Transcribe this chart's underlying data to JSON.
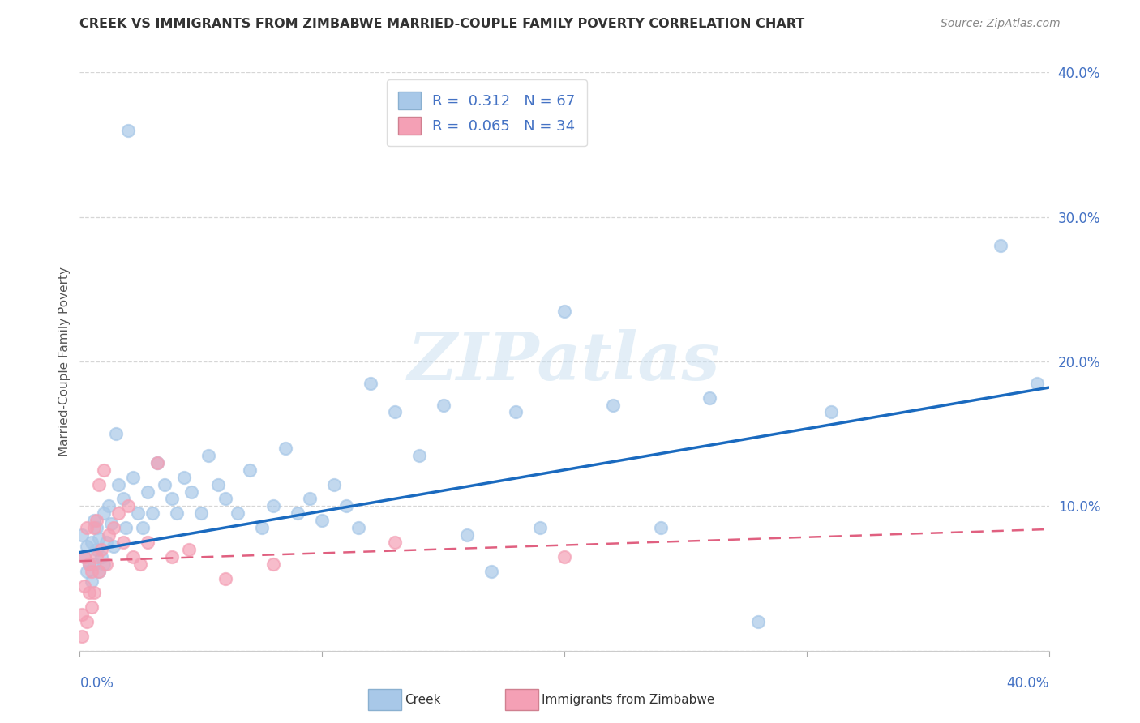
{
  "title": "CREEK VS IMMIGRANTS FROM ZIMBABWE MARRIED-COUPLE FAMILY POVERTY CORRELATION CHART",
  "source": "Source: ZipAtlas.com",
  "ylabel": "Married-Couple Family Poverty",
  "x_min": 0.0,
  "x_max": 0.4,
  "y_min": 0.0,
  "y_max": 0.4,
  "creek_R": 0.312,
  "creek_N": 67,
  "zimb_R": 0.065,
  "zimb_N": 34,
  "creek_scatter_color": "#a8c8e8",
  "creek_line_color": "#1a6abf",
  "zimb_scatter_color": "#f4a0b5",
  "zimb_line_color": "#e06080",
  "background_color": "#ffffff",
  "creek_line_intercept": 0.068,
  "creek_line_slope": 0.285,
  "zimb_line_intercept": 0.062,
  "zimb_line_slope": 0.055,
  "creek_x": [
    0.001,
    0.002,
    0.003,
    0.003,
    0.004,
    0.005,
    0.005,
    0.006,
    0.006,
    0.007,
    0.007,
    0.008,
    0.008,
    0.009,
    0.01,
    0.01,
    0.011,
    0.012,
    0.013,
    0.014,
    0.015,
    0.016,
    0.018,
    0.019,
    0.02,
    0.022,
    0.024,
    0.026,
    0.028,
    0.03,
    0.032,
    0.035,
    0.038,
    0.04,
    0.043,
    0.046,
    0.05,
    0.053,
    0.057,
    0.06,
    0.065,
    0.07,
    0.075,
    0.08,
    0.085,
    0.09,
    0.095,
    0.1,
    0.105,
    0.11,
    0.115,
    0.12,
    0.13,
    0.14,
    0.15,
    0.16,
    0.17,
    0.18,
    0.19,
    0.2,
    0.22,
    0.24,
    0.26,
    0.28,
    0.31,
    0.38,
    0.395
  ],
  "creek_y": [
    0.08,
    0.065,
    0.072,
    0.055,
    0.06,
    0.048,
    0.075,
    0.09,
    0.06,
    0.085,
    0.07,
    0.078,
    0.055,
    0.065,
    0.095,
    0.06,
    0.075,
    0.1,
    0.088,
    0.072,
    0.15,
    0.115,
    0.105,
    0.085,
    0.36,
    0.12,
    0.095,
    0.085,
    0.11,
    0.095,
    0.13,
    0.115,
    0.105,
    0.095,
    0.12,
    0.11,
    0.095,
    0.135,
    0.115,
    0.105,
    0.095,
    0.125,
    0.085,
    0.1,
    0.14,
    0.095,
    0.105,
    0.09,
    0.115,
    0.1,
    0.085,
    0.185,
    0.165,
    0.135,
    0.17,
    0.08,
    0.055,
    0.165,
    0.085,
    0.235,
    0.17,
    0.085,
    0.175,
    0.02,
    0.165,
    0.28,
    0.185
  ],
  "zimb_x": [
    0.001,
    0.001,
    0.002,
    0.002,
    0.003,
    0.003,
    0.004,
    0.004,
    0.005,
    0.005,
    0.006,
    0.006,
    0.007,
    0.007,
    0.008,
    0.008,
    0.009,
    0.01,
    0.011,
    0.012,
    0.014,
    0.016,
    0.018,
    0.02,
    0.022,
    0.025,
    0.028,
    0.032,
    0.038,
    0.045,
    0.06,
    0.08,
    0.13,
    0.2
  ],
  "zimb_y": [
    0.01,
    0.025,
    0.045,
    0.065,
    0.085,
    0.02,
    0.06,
    0.04,
    0.055,
    0.03,
    0.085,
    0.04,
    0.09,
    0.065,
    0.115,
    0.055,
    0.07,
    0.125,
    0.06,
    0.08,
    0.085,
    0.095,
    0.075,
    0.1,
    0.065,
    0.06,
    0.075,
    0.13,
    0.065,
    0.07,
    0.05,
    0.06,
    0.075,
    0.065
  ]
}
